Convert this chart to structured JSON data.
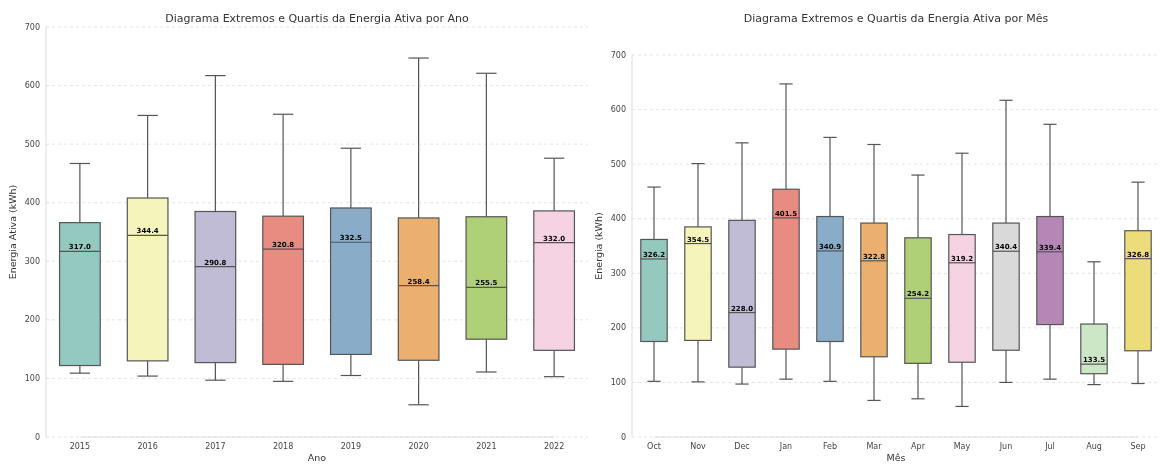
{
  "chart_data": [
    {
      "type": "box",
      "title": "Diagrama Extremos e Quartis da Energia Ativa por Ano",
      "xlabel": "Ano",
      "ylabel": "Energia Ativa (kWh)",
      "categories": [
        "2015",
        "2016",
        "2017",
        "2018",
        "2019",
        "2020",
        "2021",
        "2022"
      ],
      "boxes": [
        {
          "low": 109,
          "q1": 122,
          "median": 317.0,
          "q3": 366,
          "high": 467
        },
        {
          "low": 104,
          "q1": 130,
          "median": 344.4,
          "q3": 408,
          "high": 549
        },
        {
          "low": 97,
          "q1": 127,
          "median": 290.8,
          "q3": 385,
          "high": 617
        },
        {
          "low": 95,
          "q1": 124,
          "median": 320.8,
          "q3": 377,
          "high": 551
        },
        {
          "low": 105,
          "q1": 141,
          "median": 332.5,
          "q3": 391,
          "high": 493
        },
        {
          "low": 55,
          "q1": 131,
          "median": 258.4,
          "q3": 374,
          "high": 647
        },
        {
          "low": 111,
          "q1": 167,
          "median": 255.5,
          "q3": 376,
          "high": 621
        },
        {
          "low": 103,
          "q1": 148,
          "median": 332.0,
          "q3": 386,
          "high": 476
        }
      ],
      "colors": [
        "#93c9be",
        "#f5f5bb",
        "#c0bcd6",
        "#e88b80",
        "#89adc8",
        "#ebb06f",
        "#b0d077",
        "#f5d3e3"
      ],
      "value_labels": [
        "317.0",
        "344.4",
        "290.8",
        "320.8",
        "332.5",
        "258.4",
        "255.5",
        "332.0"
      ],
      "ylim": [
        0,
        700
      ],
      "yticks": [
        0,
        100,
        200,
        300,
        400,
        500,
        600,
        700
      ],
      "grid": "y"
    },
    {
      "type": "box",
      "title": "Diagrama Extremos e Quartis da Energia Ativa por Mês",
      "xlabel": "Mês",
      "ylabel": "Energia (kWh)",
      "categories": [
        "Oct",
        "Nov",
        "Dec",
        "Jan",
        "Feb",
        "Mar",
        "Apr",
        "May",
        "Jun",
        "Jul",
        "Aug",
        "Sep"
      ],
      "boxes": [
        {
          "low": 102,
          "q1": 175,
          "median": 326.2,
          "q3": 362,
          "high": 458
        },
        {
          "low": 101,
          "q1": 177,
          "median": 354.5,
          "q3": 385,
          "high": 501
        },
        {
          "low": 97,
          "q1": 128,
          "median": 228.0,
          "q3": 397,
          "high": 539
        },
        {
          "low": 106,
          "q1": 161,
          "median": 401.5,
          "q3": 454,
          "high": 647
        },
        {
          "low": 102,
          "q1": 175,
          "median": 340.9,
          "q3": 404,
          "high": 549
        },
        {
          "low": 67,
          "q1": 147,
          "median": 322.8,
          "q3": 392,
          "high": 536
        },
        {
          "low": 70,
          "q1": 135,
          "median": 254.2,
          "q3": 365,
          "high": 480
        },
        {
          "low": 56,
          "q1": 137,
          "median": 319.2,
          "q3": 371,
          "high": 520
        },
        {
          "low": 100,
          "q1": 159,
          "median": 340.4,
          "q3": 392,
          "high": 617
        },
        {
          "low": 106,
          "q1": 206,
          "median": 339.4,
          "q3": 404,
          "high": 573
        },
        {
          "low": 96,
          "q1": 116,
          "median": 133.5,
          "q3": 207,
          "high": 321
        },
        {
          "low": 98,
          "q1": 158,
          "median": 326.8,
          "q3": 378,
          "high": 467
        }
      ],
      "colors": [
        "#93c9be",
        "#f5f5bb",
        "#c0bcd6",
        "#e88b80",
        "#89adc8",
        "#ebb06f",
        "#b0d077",
        "#f5d3e3",
        "#d9d9d9",
        "#b686b7",
        "#cce7c6",
        "#ecdd7a"
      ],
      "value_labels": [
        "326.2",
        "354.5",
        "228.0",
        "401.5",
        "340.9",
        "322.8",
        "254.2",
        "319.2",
        "340.4",
        "339.4",
        "133.5",
        "326.8"
      ],
      "ylim": [
        0,
        700
      ],
      "yticks": [
        0,
        100,
        200,
        300,
        400,
        500,
        600,
        700
      ],
      "grid": "y"
    }
  ]
}
